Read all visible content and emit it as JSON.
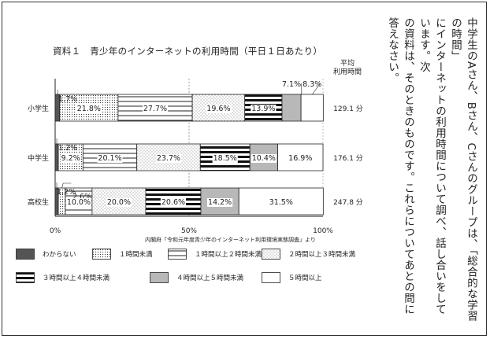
{
  "document": {
    "title": "資料１　青少年のインターネットの利用時間（平日１日あたり）",
    "avg_header": [
      "平均",
      "利用時間"
    ],
    "source": "内閣府「令和元年度青少年のインターネット利用環境実態調査」より",
    "question_lines": [
      "中学生のAさん、Bさん、Cさんのグループは、「総合的な学習の時間」",
      "にインターネットの利用時間について調べ、話し合いをしています。次",
      "の資料は、そのときのものです。これらについてあとの問に答えなさい。"
    ]
  },
  "chart_data": {
    "type": "bar",
    "orientation": "horizontal",
    "stacked": true,
    "percent_stacked": true,
    "categories": [
      "小学生",
      "中学生",
      "高校生"
    ],
    "x_ticks": [
      "0%",
      "50%",
      "100%"
    ],
    "xlim": [
      0,
      100
    ],
    "legend_placement": "bottom",
    "series": [
      {
        "name": "わからない",
        "values": [
          1.7,
          1.2,
          1.2
        ],
        "labels": [
          "1.7%",
          "1.2%",
          "1.2%"
        ],
        "pattern": "dark"
      },
      {
        "name": "１時間未満",
        "values": [
          21.8,
          9.2,
          2.6
        ],
        "labels": [
          "21.8%",
          "9.2%",
          "2.6%"
        ],
        "pattern": "dots"
      },
      {
        "name": "１時間以上２時間未満",
        "values": [
          27.7,
          20.1,
          10.0
        ],
        "labels": [
          "27.7%",
          "20.1%",
          "10.0%"
        ],
        "pattern": "hlines"
      },
      {
        "name": "２時間以上３時間未満",
        "values": [
          19.6,
          23.7,
          20.0
        ],
        "labels": [
          "19.6%",
          "23.7%",
          "20.0%"
        ],
        "pattern": "diag"
      },
      {
        "name": "３時間以上４時間未満",
        "values": [
          13.9,
          18.5,
          20.6
        ],
        "labels": [
          "13.9%",
          "18.5%",
          "20.6%"
        ],
        "pattern": "stripes"
      },
      {
        "name": "４時間以上５時間未満",
        "values": [
          7.1,
          10.4,
          14.2
        ],
        "labels": [
          "7.1%",
          "10.4%",
          "14.2%"
        ],
        "pattern": "gray"
      },
      {
        "name": "５時間以上",
        "values": [
          8.3,
          16.9,
          31.5
        ],
        "labels": [
          "8.3%",
          "16.9%",
          "31.5%"
        ],
        "pattern": "white"
      }
    ],
    "averages": [
      "129.1 分",
      "176.1 分",
      "247.8 分"
    ]
  }
}
